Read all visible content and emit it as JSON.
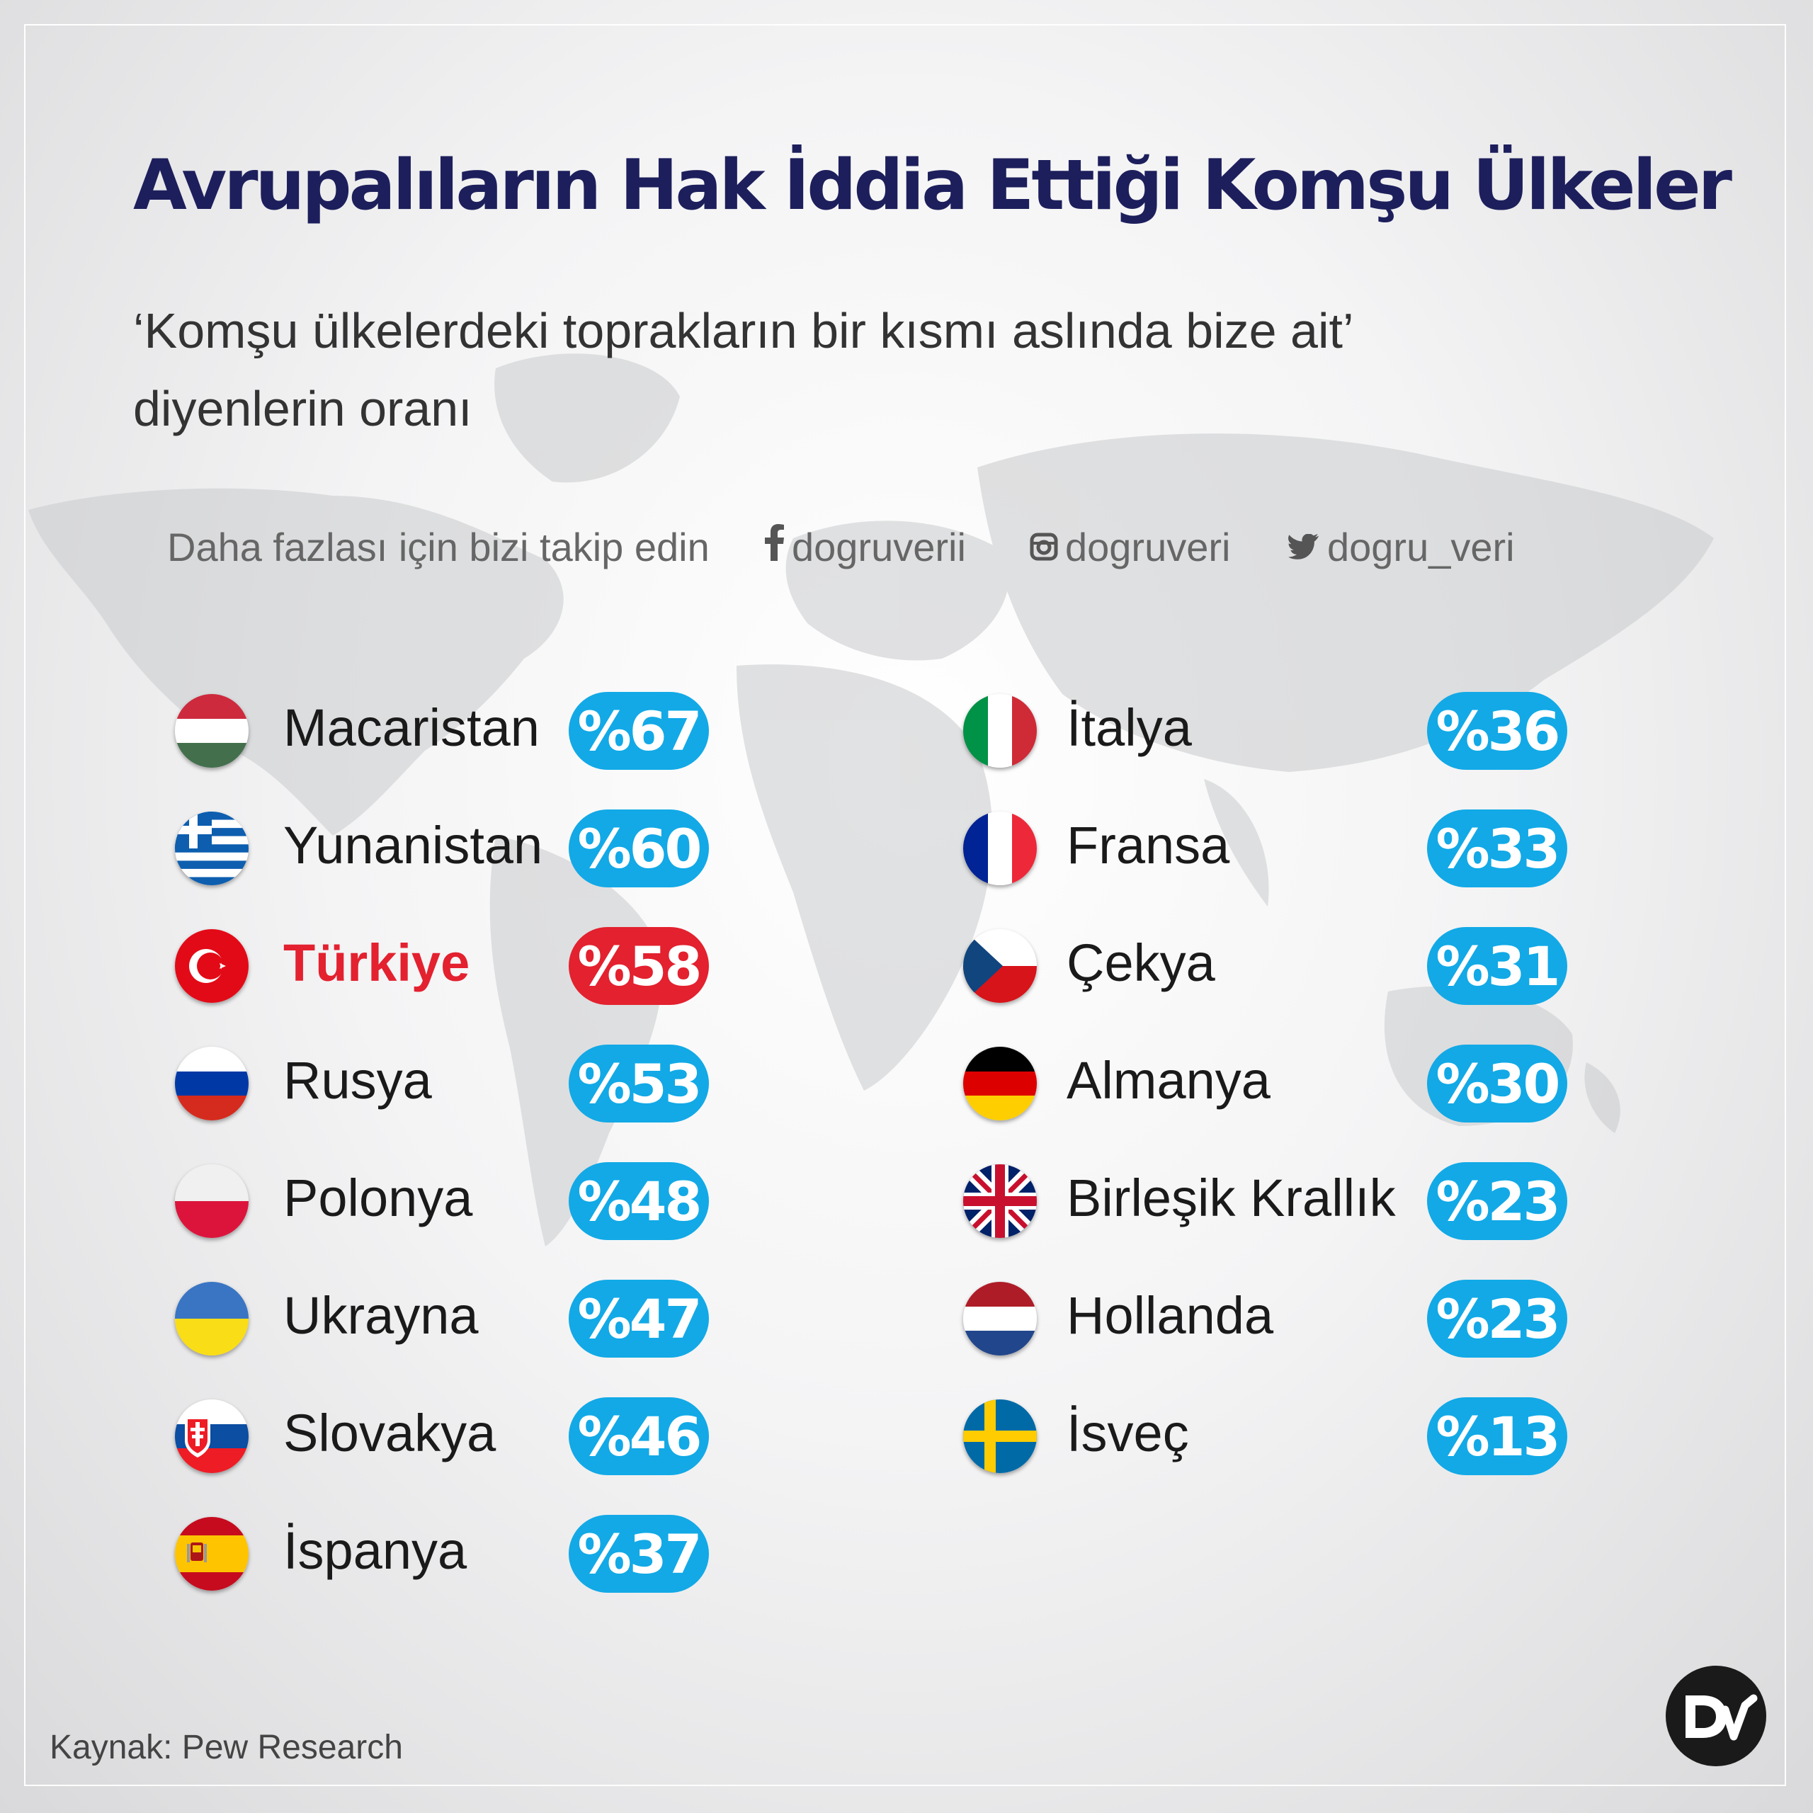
{
  "title": "Avrupalıların Hak İddia Ettiği Komşu Ülkeler",
  "subtitle_line1": "‘Komşu ülkelerdeki toprakların bir kısmı aslında bize ait’",
  "subtitle_line2": "diyenlerin oranı",
  "social": {
    "cta": "Daha fazlası için bizi takip edin",
    "facebook": "dogruverii",
    "instagram": "dogruveri",
    "twitter": "dogru_veri"
  },
  "source": "Kaynak: Pew Research",
  "colors": {
    "title": "#1d1f5c",
    "pill": "#12a9e6",
    "highlight": "#e3212f"
  },
  "chart_data": {
    "type": "table",
    "unit": "%",
    "columns": [
      [
        {
          "country": "Macaristan",
          "value": 67,
          "label": "%67",
          "flag": "hungary-flag-icon"
        },
        {
          "country": "Yunanistan",
          "value": 60,
          "label": "%60",
          "flag": "greece-flag-icon"
        },
        {
          "country": "Türkiye",
          "value": 58,
          "label": "%58",
          "flag": "turkey-flag-icon",
          "highlight": true
        },
        {
          "country": "Rusya",
          "value": 53,
          "label": "%53",
          "flag": "russia-flag-icon"
        },
        {
          "country": "Polonya",
          "value": 48,
          "label": "%48",
          "flag": "poland-flag-icon"
        },
        {
          "country": "Ukrayna",
          "value": 47,
          "label": "%47",
          "flag": "ukraine-flag-icon"
        },
        {
          "country": "Slovakya",
          "value": 46,
          "label": "%46",
          "flag": "slovakia-flag-icon"
        },
        {
          "country": "İspanya",
          "value": 37,
          "label": "%37",
          "flag": "spain-flag-icon"
        }
      ],
      [
        {
          "country": "İtalya",
          "value": 36,
          "label": "%36",
          "flag": "italy-flag-icon"
        },
        {
          "country": "Fransa",
          "value": 33,
          "label": "%33",
          "flag": "france-flag-icon"
        },
        {
          "country": "Çekya",
          "value": 31,
          "label": "%31",
          "flag": "czechia-flag-icon"
        },
        {
          "country": "Almanya",
          "value": 30,
          "label": "%30",
          "flag": "germany-flag-icon"
        },
        {
          "country": "Birleşik Krallık",
          "value": 23,
          "label": "%23",
          "flag": "uk-flag-icon"
        },
        {
          "country": "Hollanda",
          "value": 23,
          "label": "%23",
          "flag": "netherlands-flag-icon"
        },
        {
          "country": "İsveç",
          "value": 13,
          "label": "%13",
          "flag": "sweden-flag-icon"
        }
      ]
    ]
  }
}
